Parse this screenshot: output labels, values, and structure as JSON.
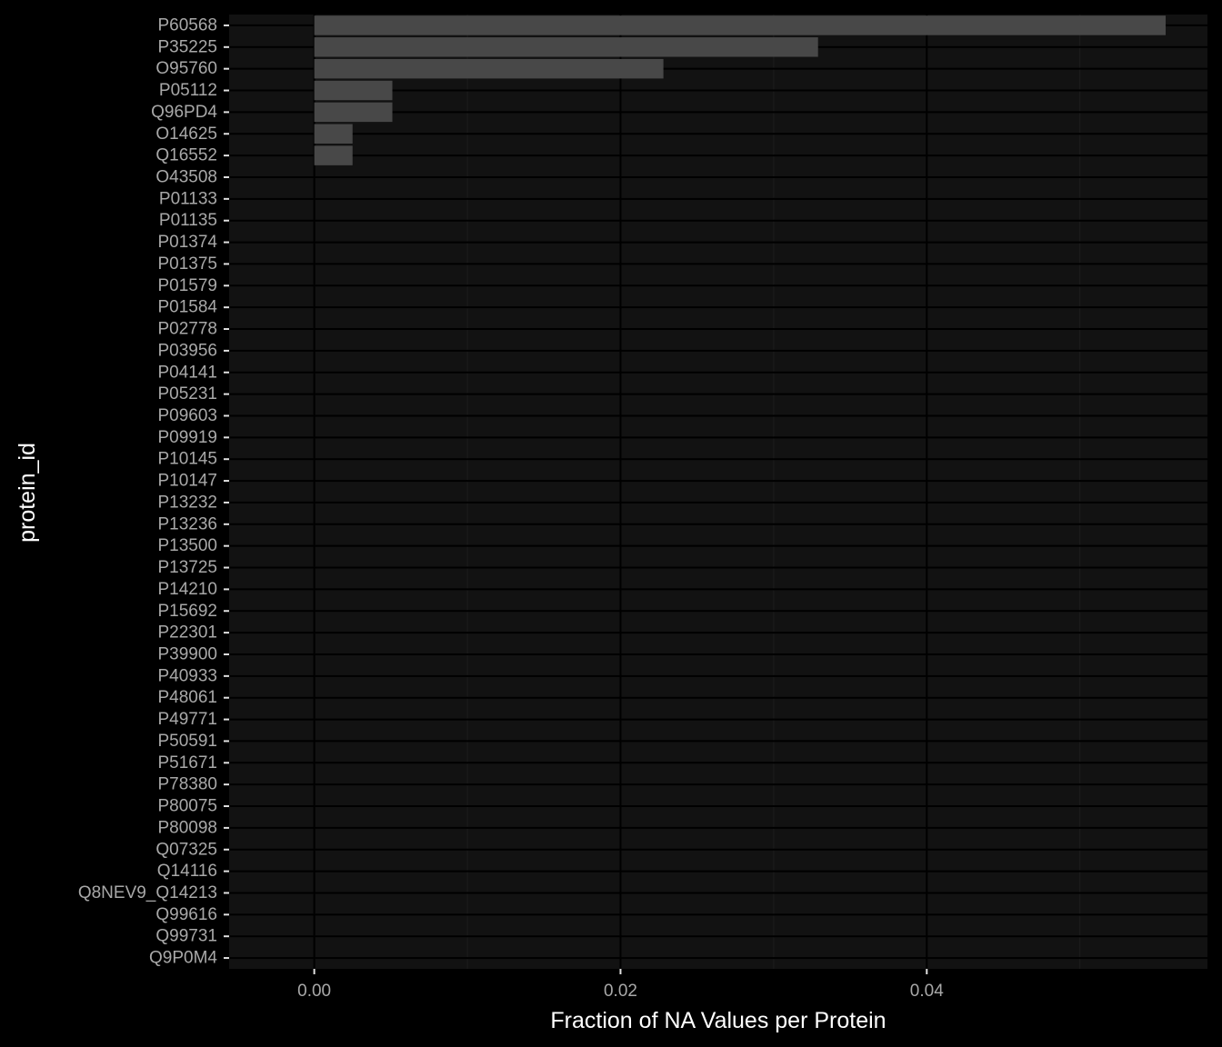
{
  "chart_data": {
    "type": "bar",
    "orientation": "horizontal",
    "xlabel": "Fraction of NA Values per Protein",
    "ylabel": "protein_id",
    "xlim": [
      -0.00556,
      0.05833
    ],
    "x_ticks": [
      0.0,
      0.02,
      0.04
    ],
    "x_tick_labels": [
      "0.00",
      "0.02",
      "0.04"
    ],
    "x_minor_ticks": [
      0.01,
      0.03,
      0.05
    ],
    "grid": true,
    "legend": "none",
    "categories": [
      "P60568",
      "P35225",
      "O95760",
      "P05112",
      "Q96PD4",
      "O14625",
      "Q16552",
      "O43508",
      "P01133",
      "P01135",
      "P01374",
      "P01375",
      "P01579",
      "P01584",
      "P02778",
      "P03956",
      "P04141",
      "P05231",
      "P09603",
      "P09919",
      "P10145",
      "P10147",
      "P13232",
      "P13236",
      "P13500",
      "P13725",
      "P14210",
      "P15692",
      "P22301",
      "P39900",
      "P40933",
      "P48061",
      "P49771",
      "P50591",
      "P51671",
      "P78380",
      "P80075",
      "P80098",
      "Q07325",
      "Q14116",
      "Q8NEV9_Q14213",
      "Q99616",
      "Q99731",
      "Q9P0M4"
    ],
    "values": [
      0.0556,
      0.0329,
      0.0228,
      0.0051,
      0.0051,
      0.0025,
      0.0025,
      0,
      0,
      0,
      0,
      0,
      0,
      0,
      0,
      0,
      0,
      0,
      0,
      0,
      0,
      0,
      0,
      0,
      0,
      0,
      0,
      0,
      0,
      0,
      0,
      0,
      0,
      0,
      0,
      0,
      0,
      0,
      0,
      0,
      0,
      0,
      0,
      0
    ]
  },
  "colors": {
    "background": "#000000",
    "panel": "#121212",
    "grid_major": "#000000",
    "grid_minor": "#1c1c1c",
    "bar": "#484848",
    "tick_text": "#a8a8a8",
    "tick_mark": "#e0e0e0",
    "title_text": "#ffffff"
  }
}
